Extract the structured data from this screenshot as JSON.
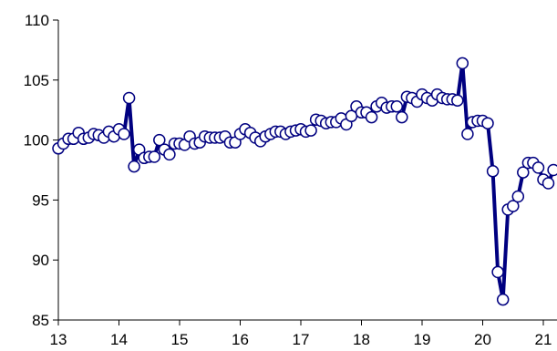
{
  "chart_data": {
    "type": "line",
    "title": "",
    "xlabel": "",
    "ylabel": "",
    "grid": false,
    "legend": "none",
    "ylim": [
      85,
      110
    ],
    "xlim": [
      2013,
      2021.55
    ],
    "y_ticks": [
      85,
      90,
      95,
      100,
      105,
      110
    ],
    "x_ticks": [
      2013,
      2014,
      2015,
      2016,
      2017,
      2018,
      2019,
      2020,
      2021
    ],
    "x_tick_labels": [
      "13",
      "14",
      "15",
      "16",
      "17",
      "18",
      "19",
      "20",
      "21"
    ],
    "colors": {
      "line": "#000080",
      "marker_fill": "#ffffff",
      "marker_stroke": "#000080",
      "axis": "#000000"
    },
    "series": [
      {
        "values": [
          99.3,
          99.7,
          100.1,
          100.1,
          100.6,
          100.1,
          100.2,
          100.5,
          100.4,
          100.2,
          100.7,
          100.3,
          100.9,
          100.5,
          103.5,
          97.8,
          99.2,
          98.5,
          98.6,
          98.6,
          100.0,
          99.2,
          98.8,
          99.7,
          99.7,
          99.6,
          100.3,
          99.7,
          99.8,
          100.3,
          100.2,
          100.2,
          100.2,
          100.3,
          99.8,
          99.8,
          100.5,
          100.9,
          100.6,
          100.2,
          99.9,
          100.3,
          100.5,
          100.7,
          100.7,
          100.5,
          100.7,
          100.8,
          100.9,
          100.7,
          100.8,
          101.7,
          101.6,
          101.4,
          101.5,
          101.5,
          101.8,
          101.3,
          102.0,
          102.8,
          102.3,
          102.3,
          101.9,
          102.8,
          103.1,
          102.7,
          102.8,
          102.8,
          101.9,
          103.6,
          103.5,
          103.2,
          103.8,
          103.5,
          103.3,
          103.8,
          103.5,
          103.4,
          103.4,
          103.3,
          106.4,
          100.5,
          101.5,
          101.6,
          101.6,
          101.4,
          97.4,
          89.0,
          86.7,
          94.2,
          94.5,
          95.3,
          97.3,
          98.1,
          98.1,
          97.7,
          96.7,
          96.4,
          97.5
        ]
      }
    ],
    "x_start": 2013.0,
    "x_step_months": 1
  }
}
